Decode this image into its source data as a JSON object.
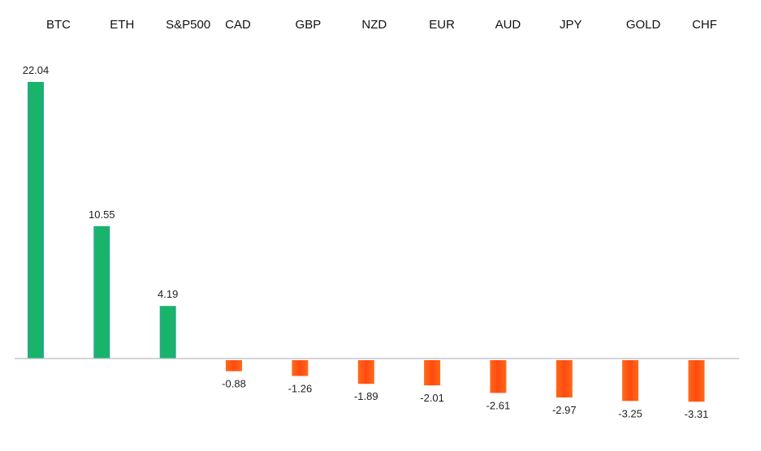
{
  "chart_data": {
    "type": "bar",
    "title": "",
    "xlabel": "",
    "ylabel": "",
    "categories": [
      "BTC",
      "ETH",
      "S&P500",
      "CAD",
      "GBP",
      "NZD",
      "EUR",
      "AUD",
      "JPY",
      "GOLD",
      "CHF"
    ],
    "values": [
      22.04,
      10.55,
      4.19,
      -0.88,
      -1.26,
      -1.89,
      -2.01,
      -2.61,
      -2.97,
      -3.25,
      -3.31
    ],
    "value_labels": [
      "22.04",
      "10.55",
      "4.19",
      "-0.88",
      "-1.26",
      "-1.89",
      "-2.01",
      "-2.61",
      "-2.97",
      "-3.25",
      "-3.31"
    ],
    "ylim": [
      -3.31,
      22.04
    ],
    "grid": false,
    "legend": "none",
    "category_labels_position": "top",
    "colors": {
      "positive": "#17b46a",
      "positive_edge": "#2e9e8a",
      "negative": "#ff4a10",
      "baseline": "#b8bcc4"
    }
  }
}
